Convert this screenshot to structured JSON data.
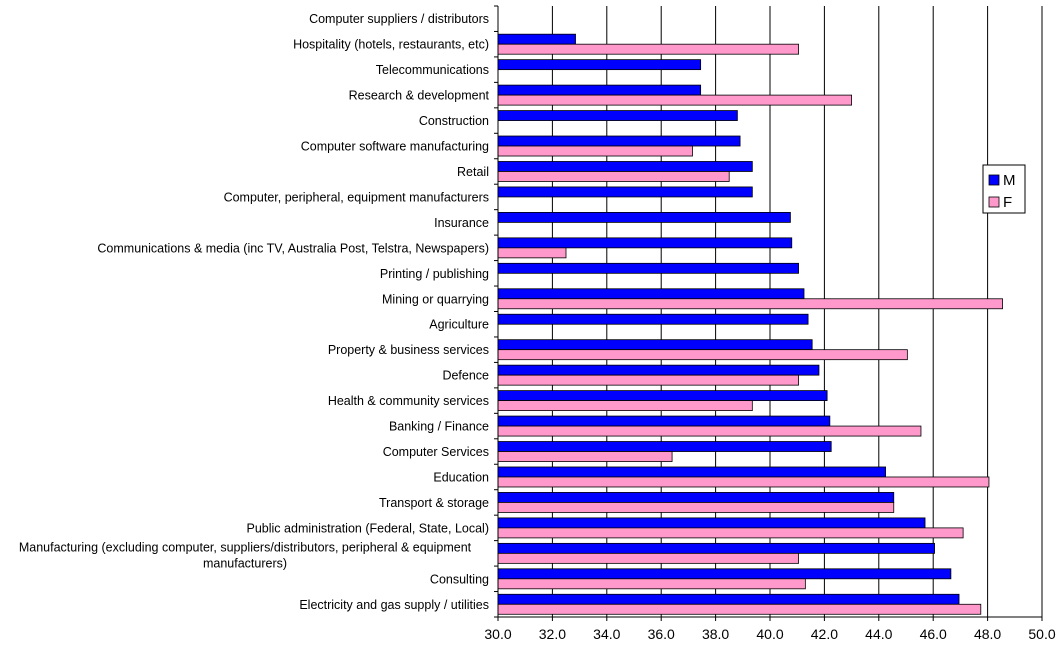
{
  "chart_data": {
    "type": "bar",
    "orientation": "horizontal",
    "categories": [
      "Computer suppliers / distributors",
      "Hospitality (hotels, restaurants, etc)",
      "Telecommunications",
      "Research & development",
      "Construction",
      "Computer software manufacturing",
      "Retail",
      "Computer, peripheral, equipment manufacturers",
      "Insurance",
      "Communications & media (inc TV, Australia Post, Telstra, Newspapers)",
      "Printing / publishing",
      "Mining or quarrying",
      "Agriculture",
      "Property & business services",
      "Defence",
      "Health & community services",
      "Banking / Finance",
      "Computer Services",
      "Education",
      "Transport & storage",
      "Public administration (Federal, State, Local)",
      "Manufacturing (excluding computer, suppliers/distributors, peripheral & equipment manufacturers)",
      "Consulting",
      "Electricity and gas supply / utilities"
    ],
    "series": [
      {
        "name": "M",
        "color": "#0000ff",
        "values": [
          30.0,
          32.85,
          37.45,
          37.45,
          38.8,
          38.9,
          39.35,
          39.35,
          40.75,
          40.8,
          41.05,
          41.25,
          41.4,
          41.55,
          41.8,
          42.1,
          42.2,
          42.25,
          44.25,
          44.55,
          45.7,
          46.05,
          46.65,
          46.95
        ]
      },
      {
        "name": "F",
        "color": "#ff99cc",
        "values": [
          30.0,
          41.05,
          30.0,
          43.0,
          30.0,
          37.15,
          38.5,
          30.0,
          30.0,
          32.5,
          30.0,
          48.55,
          30.0,
          45.05,
          41.05,
          39.35,
          45.55,
          36.4,
          48.05,
          44.55,
          47.1,
          41.05,
          41.3,
          47.75
        ]
      }
    ],
    "xlim": [
      30.0,
      50.0
    ],
    "xticks": [
      "30.0",
      "32.0",
      "34.0",
      "36.0",
      "38.0",
      "40.0",
      "42.0",
      "44.0",
      "46.0",
      "48.0",
      "50.0"
    ],
    "xtick_values": [
      30,
      32,
      34,
      36,
      38,
      40,
      42,
      44,
      46,
      48,
      50
    ],
    "grid": "vertical",
    "legend_position": "right",
    "title": "",
    "xlabel": "",
    "ylabel": ""
  }
}
